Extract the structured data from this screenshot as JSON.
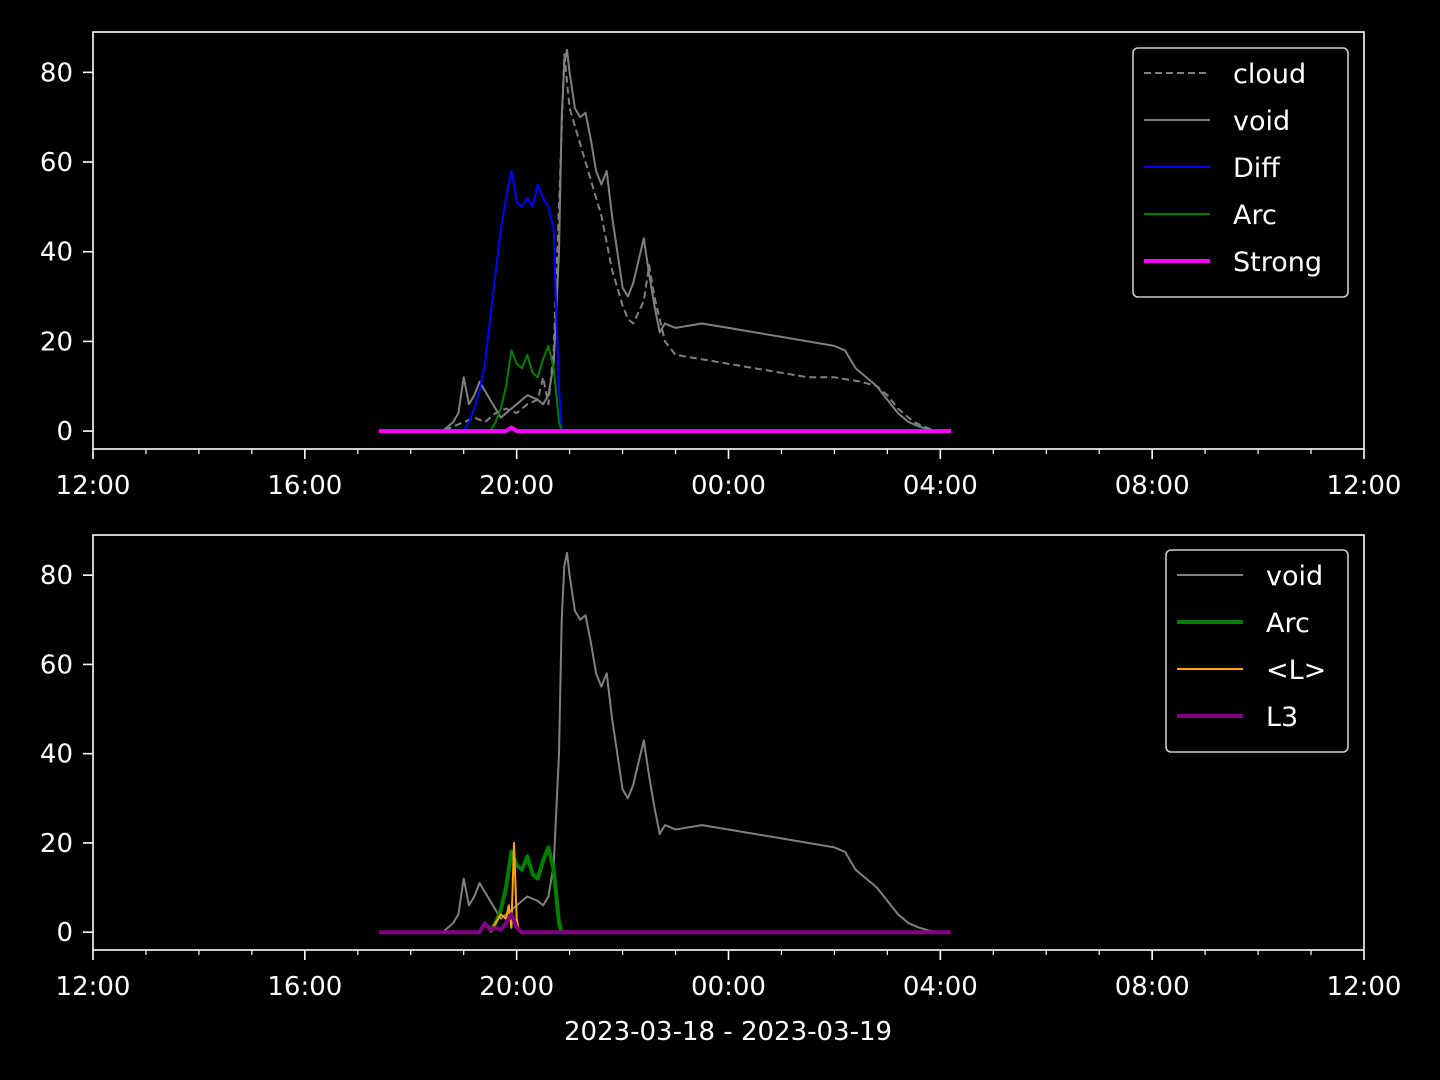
{
  "figure": {
    "xlabel": "2023-03-18 - 2023-03-19",
    "background": "#000000",
    "foreground": "#ffffff"
  },
  "chart_data": [
    {
      "type": "line",
      "title": "",
      "xlabel": "",
      "ylabel": "",
      "x_unit": "hours since 2023-03-18 00:00",
      "xlim": [
        12,
        36
      ],
      "ylim": [
        -4,
        89
      ],
      "x_ticks": [
        {
          "x": 12,
          "label": "12:00"
        },
        {
          "x": 16,
          "label": "16:00"
        },
        {
          "x": 20,
          "label": "20:00"
        },
        {
          "x": 24,
          "label": "00:00"
        },
        {
          "x": 28,
          "label": "04:00"
        },
        {
          "x": 32,
          "label": "08:00"
        },
        {
          "x": 36,
          "label": "12:00"
        }
      ],
      "x_minor_ticks": [
        13,
        14,
        15,
        17,
        18,
        19,
        21,
        22,
        23,
        25,
        26,
        27,
        29,
        30,
        31,
        33,
        34,
        35
      ],
      "y_ticks": [
        0,
        20,
        40,
        60,
        80
      ],
      "grid": false,
      "legend_position": "upper-right",
      "series": [
        {
          "name": "cloud",
          "color": "#808080",
          "dash": "dashed",
          "width": "thin",
          "points": [
            [
              17.4,
              0
            ],
            [
              18.6,
              0
            ],
            [
              18.8,
              1
            ],
            [
              19.0,
              2
            ],
            [
              19.2,
              3
            ],
            [
              19.4,
              2
            ],
            [
              19.6,
              4
            ],
            [
              19.8,
              5
            ],
            [
              20.0,
              4
            ],
            [
              20.2,
              6
            ],
            [
              20.4,
              7
            ],
            [
              20.5,
              12
            ],
            [
              20.6,
              6
            ],
            [
              20.7,
              18
            ],
            [
              20.8,
              50
            ],
            [
              20.9,
              84
            ],
            [
              21.0,
              72
            ],
            [
              21.3,
              60
            ],
            [
              21.6,
              48
            ],
            [
              21.8,
              36
            ],
            [
              22.0,
              28
            ],
            [
              22.1,
              25
            ],
            [
              22.2,
              24
            ],
            [
              22.4,
              29
            ],
            [
              22.5,
              37
            ],
            [
              22.6,
              30
            ],
            [
              22.8,
              20
            ],
            [
              23.0,
              17
            ],
            [
              23.5,
              16
            ],
            [
              24.0,
              15
            ],
            [
              24.5,
              14
            ],
            [
              25.0,
              13
            ],
            [
              25.5,
              12
            ],
            [
              26.0,
              12
            ],
            [
              26.5,
              11
            ],
            [
              26.8,
              10
            ],
            [
              27.0,
              8
            ],
            [
              27.2,
              5
            ],
            [
              27.5,
              2
            ],
            [
              27.8,
              0.5
            ],
            [
              28.0,
              0
            ],
            [
              28.2,
              0
            ]
          ]
        },
        {
          "name": "void",
          "color": "#808080",
          "dash": "solid",
          "width": "thin",
          "points": [
            [
              17.4,
              0
            ],
            [
              18.6,
              0
            ],
            [
              18.8,
              2
            ],
            [
              18.9,
              4
            ],
            [
              19.0,
              12
            ],
            [
              19.1,
              6
            ],
            [
              19.2,
              8
            ],
            [
              19.3,
              11
            ],
            [
              19.4,
              9
            ],
            [
              19.5,
              7
            ],
            [
              19.6,
              5
            ],
            [
              19.7,
              3
            ],
            [
              19.8,
              4
            ],
            [
              20.0,
              6
            ],
            [
              20.2,
              8
            ],
            [
              20.4,
              7
            ],
            [
              20.5,
              6
            ],
            [
              20.6,
              8
            ],
            [
              20.7,
              15
            ],
            [
              20.8,
              40
            ],
            [
              20.85,
              70
            ],
            [
              20.9,
              82
            ],
            [
              20.95,
              85
            ],
            [
              21.0,
              80
            ],
            [
              21.1,
              72
            ],
            [
              21.2,
              70
            ],
            [
              21.3,
              71
            ],
            [
              21.4,
              65
            ],
            [
              21.5,
              58
            ],
            [
              21.6,
              55
            ],
            [
              21.7,
              58
            ],
            [
              21.8,
              48
            ],
            [
              21.9,
              40
            ],
            [
              22.0,
              32
            ],
            [
              22.1,
              30
            ],
            [
              22.2,
              33
            ],
            [
              22.3,
              38
            ],
            [
              22.4,
              43
            ],
            [
              22.5,
              35
            ],
            [
              22.6,
              28
            ],
            [
              22.7,
              22
            ],
            [
              22.8,
              24
            ],
            [
              23.0,
              23
            ],
            [
              23.5,
              24
            ],
            [
              24.0,
              23
            ],
            [
              24.5,
              22
            ],
            [
              25.0,
              21
            ],
            [
              25.5,
              20
            ],
            [
              26.0,
              19
            ],
            [
              26.2,
              18
            ],
            [
              26.4,
              14
            ],
            [
              26.6,
              12
            ],
            [
              26.8,
              10
            ],
            [
              27.0,
              7
            ],
            [
              27.2,
              4
            ],
            [
              27.4,
              2
            ],
            [
              27.6,
              1
            ],
            [
              27.8,
              0.3
            ],
            [
              28.0,
              0
            ]
          ]
        },
        {
          "name": "Diff",
          "color": "#0000ff",
          "dash": "solid",
          "width": "thin",
          "points": [
            [
              19.0,
              0
            ],
            [
              19.1,
              2
            ],
            [
              19.2,
              5
            ],
            [
              19.3,
              9
            ],
            [
              19.4,
              15
            ],
            [
              19.5,
              25
            ],
            [
              19.6,
              35
            ],
            [
              19.7,
              45
            ],
            [
              19.8,
              52
            ],
            [
              19.9,
              58
            ],
            [
              19.95,
              55
            ],
            [
              20.0,
              51
            ],
            [
              20.1,
              50
            ],
            [
              20.2,
              52
            ],
            [
              20.3,
              50
            ],
            [
              20.4,
              55
            ],
            [
              20.5,
              52
            ],
            [
              20.6,
              50
            ],
            [
              20.7,
              45
            ],
            [
              20.75,
              25
            ],
            [
              20.8,
              10
            ],
            [
              20.85,
              0
            ]
          ]
        },
        {
          "name": "Arc",
          "color": "#008000",
          "dash": "solid",
          "width": "thin",
          "points": [
            [
              19.5,
              0
            ],
            [
              19.6,
              2
            ],
            [
              19.7,
              5
            ],
            [
              19.8,
              10
            ],
            [
              19.9,
              18
            ],
            [
              20.0,
              15
            ],
            [
              20.1,
              14
            ],
            [
              20.2,
              17
            ],
            [
              20.3,
              13
            ],
            [
              20.4,
              12
            ],
            [
              20.5,
              16
            ],
            [
              20.6,
              19
            ],
            [
              20.7,
              14
            ],
            [
              20.75,
              8
            ],
            [
              20.8,
              2
            ],
            [
              20.85,
              0
            ]
          ]
        },
        {
          "name": "Strong",
          "color": "#ff00ff",
          "dash": "solid",
          "width": "thick",
          "points": [
            [
              17.4,
              0
            ],
            [
              19.8,
              0
            ],
            [
              19.9,
              0.8
            ],
            [
              20.0,
              0
            ],
            [
              28.2,
              0
            ]
          ]
        }
      ]
    },
    {
      "type": "line",
      "title": "",
      "xlabel": "",
      "ylabel": "",
      "x_unit": "hours since 2023-03-18 00:00",
      "xlim": [
        12,
        36
      ],
      "ylim": [
        -4,
        89
      ],
      "x_ticks": [
        {
          "x": 12,
          "label": "12:00"
        },
        {
          "x": 16,
          "label": "16:00"
        },
        {
          "x": 20,
          "label": "20:00"
        },
        {
          "x": 24,
          "label": "00:00"
        },
        {
          "x": 28,
          "label": "04:00"
        },
        {
          "x": 32,
          "label": "08:00"
        },
        {
          "x": 36,
          "label": "12:00"
        }
      ],
      "x_minor_ticks": [
        13,
        14,
        15,
        17,
        18,
        19,
        21,
        22,
        23,
        25,
        26,
        27,
        29,
        30,
        31,
        33,
        34,
        35
      ],
      "y_ticks": [
        0,
        20,
        40,
        60,
        80
      ],
      "grid": false,
      "legend_position": "upper-right",
      "series": [
        {
          "name": "void",
          "color": "#808080",
          "dash": "solid",
          "width": "thin",
          "points": [
            [
              17.4,
              0
            ],
            [
              18.6,
              0
            ],
            [
              18.8,
              2
            ],
            [
              18.9,
              4
            ],
            [
              19.0,
              12
            ],
            [
              19.1,
              6
            ],
            [
              19.2,
              8
            ],
            [
              19.3,
              11
            ],
            [
              19.4,
              9
            ],
            [
              19.5,
              7
            ],
            [
              19.6,
              5
            ],
            [
              19.7,
              3
            ],
            [
              19.8,
              4
            ],
            [
              20.0,
              6
            ],
            [
              20.2,
              8
            ],
            [
              20.4,
              7
            ],
            [
              20.5,
              6
            ],
            [
              20.6,
              8
            ],
            [
              20.7,
              15
            ],
            [
              20.8,
              40
            ],
            [
              20.85,
              70
            ],
            [
              20.9,
              82
            ],
            [
              20.95,
              85
            ],
            [
              21.0,
              80
            ],
            [
              21.1,
              72
            ],
            [
              21.2,
              70
            ],
            [
              21.3,
              71
            ],
            [
              21.4,
              65
            ],
            [
              21.5,
              58
            ],
            [
              21.6,
              55
            ],
            [
              21.7,
              58
            ],
            [
              21.8,
              48
            ],
            [
              21.9,
              40
            ],
            [
              22.0,
              32
            ],
            [
              22.1,
              30
            ],
            [
              22.2,
              33
            ],
            [
              22.3,
              38
            ],
            [
              22.4,
              43
            ],
            [
              22.5,
              35
            ],
            [
              22.6,
              28
            ],
            [
              22.7,
              22
            ],
            [
              22.8,
              24
            ],
            [
              23.0,
              23
            ],
            [
              23.5,
              24
            ],
            [
              24.0,
              23
            ],
            [
              24.5,
              22
            ],
            [
              25.0,
              21
            ],
            [
              25.5,
              20
            ],
            [
              26.0,
              19
            ],
            [
              26.2,
              18
            ],
            [
              26.4,
              14
            ],
            [
              26.6,
              12
            ],
            [
              26.8,
              10
            ],
            [
              27.0,
              7
            ],
            [
              27.2,
              4
            ],
            [
              27.4,
              2
            ],
            [
              27.6,
              1
            ],
            [
              27.8,
              0.3
            ],
            [
              28.0,
              0
            ]
          ]
        },
        {
          "name": "Arc",
          "color": "#008000",
          "dash": "solid",
          "width": "thick",
          "points": [
            [
              19.5,
              0
            ],
            [
              19.6,
              2
            ],
            [
              19.7,
              5
            ],
            [
              19.8,
              10
            ],
            [
              19.9,
              18
            ],
            [
              20.0,
              15
            ],
            [
              20.1,
              14
            ],
            [
              20.2,
              17
            ],
            [
              20.3,
              13
            ],
            [
              20.4,
              12
            ],
            [
              20.5,
              16
            ],
            [
              20.6,
              19
            ],
            [
              20.7,
              14
            ],
            [
              20.75,
              8
            ],
            [
              20.8,
              2
            ],
            [
              20.85,
              0
            ]
          ]
        },
        {
          "name": "<L>",
          "color": "#ffa500",
          "dash": "solid",
          "width": "thin",
          "points": [
            [
              19.5,
              0
            ],
            [
              19.6,
              2
            ],
            [
              19.7,
              4
            ],
            [
              19.8,
              3
            ],
            [
              19.85,
              6
            ],
            [
              19.9,
              1
            ],
            [
              19.95,
              20
            ],
            [
              20.0,
              3
            ],
            [
              20.05,
              0
            ]
          ]
        },
        {
          "name": "L3",
          "color": "#800080",
          "dash": "solid",
          "width": "thick",
          "points": [
            [
              17.4,
              0
            ],
            [
              19.3,
              0
            ],
            [
              19.4,
              2
            ],
            [
              19.5,
              0.5
            ],
            [
              19.6,
              1
            ],
            [
              19.7,
              0.5
            ],
            [
              19.8,
              2
            ],
            [
              19.9,
              4
            ],
            [
              20.0,
              1
            ],
            [
              20.1,
              0
            ],
            [
              28.2,
              0
            ]
          ]
        }
      ]
    }
  ]
}
